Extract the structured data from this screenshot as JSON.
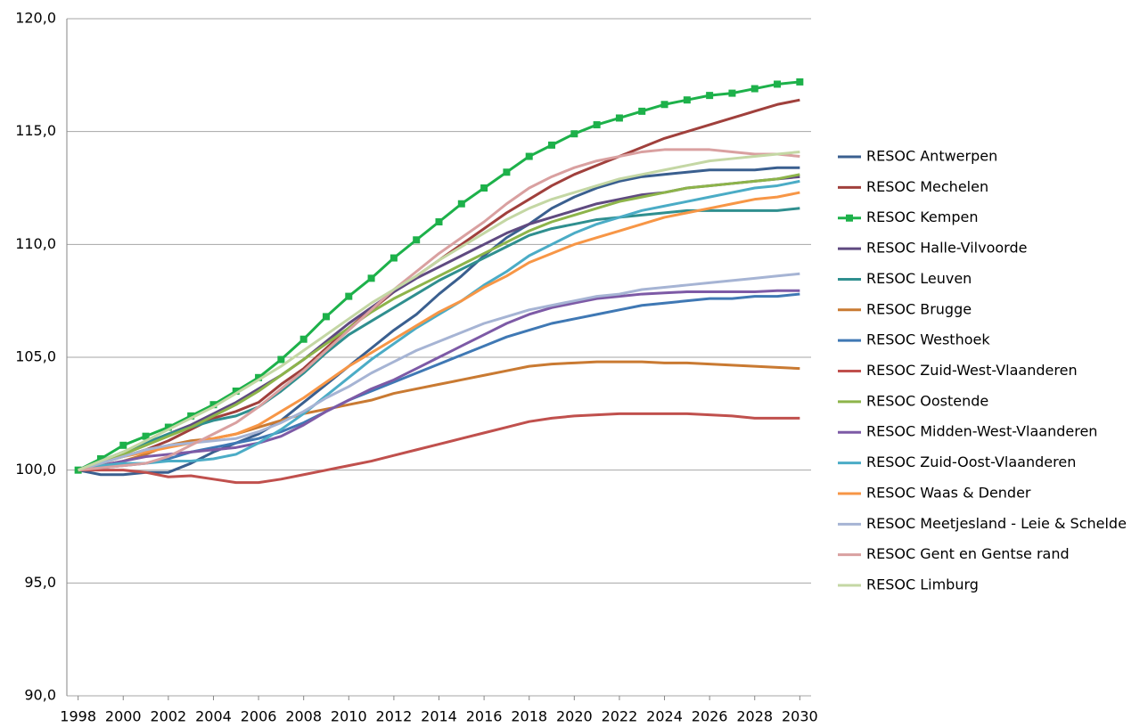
{
  "chart_data": {
    "type": "line",
    "x": [
      1998,
      1999,
      2000,
      2001,
      2002,
      2003,
      2004,
      2005,
      2006,
      2007,
      2008,
      2009,
      2010,
      2011,
      2012,
      2013,
      2014,
      2015,
      2016,
      2017,
      2018,
      2019,
      2020,
      2021,
      2022,
      2023,
      2024,
      2025,
      2026,
      2027,
      2028,
      2029,
      2030
    ],
    "xlim": [
      1997.5,
      2030.5
    ],
    "xticks": [
      1998,
      2000,
      2002,
      2004,
      2006,
      2008,
      2010,
      2012,
      2014,
      2016,
      2018,
      2020,
      2022,
      2024,
      2026,
      2028,
      2030
    ],
    "ylim": [
      90,
      120
    ],
    "yticks": [
      {
        "value": 90,
        "label": "90,0"
      },
      {
        "value": 95,
        "label": "95,0"
      },
      {
        "value": 100,
        "label": "100,0"
      },
      {
        "value": 105,
        "label": "105,0"
      },
      {
        "value": 110,
        "label": "110,0"
      },
      {
        "value": 115,
        "label": "115,0"
      },
      {
        "value": 120,
        "label": "120,0"
      }
    ],
    "grid": true,
    "legend": "right",
    "series": [
      {
        "name": "RESOC Antwerpen",
        "color": "#3a5f8f",
        "values": [
          100,
          99.8,
          99.8,
          99.9,
          99.9,
          100.3,
          100.8,
          101.2,
          101.6,
          102.2,
          103.0,
          103.8,
          104.6,
          105.4,
          106.2,
          106.9,
          107.8,
          108.6,
          109.5,
          110.3,
          110.9,
          111.6,
          112.1,
          112.5,
          112.8,
          113.0,
          113.1,
          113.2,
          113.3,
          113.3,
          113.3,
          113.4,
          113.4
        ]
      },
      {
        "name": "RESOC Mechelen",
        "color": "#a0403c",
        "values": [
          100,
          100.3,
          100.6,
          100.9,
          101.3,
          101.8,
          102.3,
          102.6,
          103.0,
          103.8,
          104.5,
          105.4,
          106.3,
          107.1,
          107.9,
          108.6,
          109.3,
          110.0,
          110.7,
          111.4,
          112.0,
          112.6,
          113.1,
          113.5,
          113.9,
          114.3,
          114.7,
          115.0,
          115.3,
          115.6,
          115.9,
          116.2,
          116.4
        ]
      },
      {
        "name": "RESOC Kempen",
        "color": "#1db14a",
        "marker": "square",
        "values": [
          100,
          100.5,
          101.1,
          101.5,
          101.9,
          102.4,
          102.9,
          103.5,
          104.1,
          104.9,
          105.8,
          106.8,
          107.7,
          108.5,
          109.4,
          110.2,
          111.0,
          111.8,
          112.5,
          113.2,
          113.9,
          114.4,
          114.9,
          115.3,
          115.6,
          115.9,
          116.2,
          116.4,
          116.6,
          116.7,
          116.9,
          117.1,
          117.2
        ]
      },
      {
        "name": "RESOC Halle-Vilvoorde",
        "color": "#5f4a80",
        "values": [
          100,
          100.4,
          100.8,
          101.2,
          101.6,
          102.0,
          102.5,
          103.0,
          103.6,
          104.2,
          104.9,
          105.7,
          106.5,
          107.2,
          107.9,
          108.5,
          109.0,
          109.5,
          110.0,
          110.5,
          110.9,
          111.2,
          111.5,
          111.8,
          112.0,
          112.2,
          112.3,
          112.5,
          112.6,
          112.7,
          112.8,
          112.9,
          113.0
        ]
      },
      {
        "name": "RESOC Leuven",
        "color": "#2f8f8f",
        "values": [
          100,
          100.4,
          100.8,
          101.2,
          101.6,
          101.9,
          102.2,
          102.4,
          102.8,
          103.5,
          104.3,
          105.2,
          106.0,
          106.6,
          107.2,
          107.8,
          108.4,
          108.9,
          109.4,
          109.9,
          110.4,
          110.7,
          110.9,
          111.1,
          111.2,
          111.3,
          111.4,
          111.5,
          111.5,
          111.5,
          111.5,
          111.5,
          111.6
        ]
      },
      {
        "name": "RESOC Brugge",
        "color": "#c97a32",
        "values": [
          100,
          100.2,
          100.4,
          100.7,
          101.1,
          101.3,
          101.4,
          101.6,
          101.9,
          102.2,
          102.5,
          102.7,
          102.9,
          103.1,
          103.4,
          103.6,
          103.8,
          104.0,
          104.2,
          104.4,
          104.6,
          104.7,
          104.75,
          104.8,
          104.8,
          104.8,
          104.75,
          104.75,
          104.7,
          104.65,
          104.6,
          104.55,
          104.5
        ]
      },
      {
        "name": "RESOC Westhoek",
        "color": "#3f78b4",
        "values": [
          100,
          100.1,
          100.2,
          100.3,
          100.5,
          100.8,
          101.0,
          101.2,
          101.4,
          101.7,
          102.1,
          102.6,
          103.1,
          103.5,
          103.9,
          104.3,
          104.7,
          105.1,
          105.5,
          105.9,
          106.2,
          106.5,
          106.7,
          106.9,
          107.1,
          107.3,
          107.4,
          107.5,
          107.6,
          107.6,
          107.7,
          107.7,
          107.8
        ]
      },
      {
        "name": "RESOC Zuid-West-Vlaanderen",
        "color": "#c0504d",
        "values": [
          100,
          100,
          100,
          99.9,
          99.7,
          99.75,
          99.6,
          99.45,
          99.45,
          99.6,
          99.8,
          100.0,
          100.2,
          100.4,
          100.65,
          100.9,
          101.15,
          101.4,
          101.65,
          101.9,
          102.15,
          102.3,
          102.4,
          102.45,
          102.5,
          102.5,
          102.5,
          102.5,
          102.45,
          102.4,
          102.3,
          102.3,
          102.3
        ]
      },
      {
        "name": "RESOC Oostende",
        "color": "#8db44a",
        "values": [
          100,
          100.3,
          100.7,
          101.1,
          101.5,
          101.9,
          102.4,
          102.9,
          103.5,
          104.2,
          104.9,
          105.6,
          106.3,
          107.0,
          107.6,
          108.1,
          108.6,
          109.1,
          109.6,
          110.1,
          110.6,
          111.0,
          111.3,
          111.6,
          111.9,
          112.1,
          112.3,
          112.5,
          112.6,
          112.7,
          112.8,
          112.9,
          113.1
        ]
      },
      {
        "name": "RESOC Midden-West-Vlaanderen",
        "color": "#7d5aa6",
        "values": [
          100,
          100.2,
          100.4,
          100.6,
          100.7,
          100.8,
          100.9,
          101.0,
          101.2,
          101.5,
          102.0,
          102.6,
          103.1,
          103.6,
          104.0,
          104.5,
          105.0,
          105.5,
          106.0,
          106.5,
          106.9,
          107.2,
          107.4,
          107.6,
          107.7,
          107.8,
          107.85,
          107.9,
          107.9,
          107.9,
          107.9,
          107.95,
          107.95
        ]
      },
      {
        "name": "RESOC Zuid-Oost-Vlaanderen",
        "color": "#4bacc6",
        "values": [
          100,
          100.2,
          100.3,
          100.3,
          100.4,
          100.4,
          100.5,
          100.7,
          101.2,
          101.8,
          102.5,
          103.3,
          104.1,
          104.9,
          105.6,
          106.3,
          106.9,
          107.5,
          108.2,
          108.8,
          109.5,
          110.0,
          110.5,
          110.9,
          111.2,
          111.5,
          111.7,
          111.9,
          112.1,
          112.3,
          112.5,
          112.6,
          112.8
        ]
      },
      {
        "name": "RESOC Waas & Dender",
        "color": "#f79646",
        "values": [
          100,
          100.3,
          100.6,
          100.8,
          101.0,
          101.2,
          101.4,
          101.6,
          102.0,
          102.6,
          103.2,
          103.9,
          104.6,
          105.2,
          105.8,
          106.4,
          107.0,
          107.5,
          108.1,
          108.6,
          109.2,
          109.6,
          110.0,
          110.3,
          110.6,
          110.9,
          111.2,
          111.4,
          111.6,
          111.8,
          112.0,
          112.1,
          112.3
        ]
      },
      {
        "name": "RESOC Meetjesland - Leie & Schelde",
        "color": "#a6b4d4",
        "values": [
          100,
          100.3,
          100.6,
          100.9,
          101.1,
          101.2,
          101.3,
          101.4,
          101.7,
          102.1,
          102.6,
          103.2,
          103.7,
          104.3,
          104.8,
          105.3,
          105.7,
          106.1,
          106.5,
          106.8,
          107.1,
          107.3,
          107.5,
          107.7,
          107.8,
          108.0,
          108.1,
          108.2,
          108.3,
          108.4,
          108.5,
          108.6,
          108.7
        ]
      },
      {
        "name": "RESOC Gent en Gentse rand",
        "color": "#d9a0a0",
        "values": [
          100,
          100.1,
          100.2,
          100.3,
          100.6,
          101.1,
          101.6,
          102.1,
          102.8,
          103.6,
          104.4,
          105.3,
          106.2,
          107.1,
          108.0,
          108.8,
          109.6,
          110.3,
          111.0,
          111.8,
          112.5,
          113.0,
          113.4,
          113.7,
          113.9,
          114.1,
          114.2,
          114.2,
          114.2,
          114.1,
          114.0,
          114.0,
          113.9
        ]
      },
      {
        "name": "RESOC Limburg",
        "color": "#c4d7a4",
        "values": [
          100,
          100.4,
          100.8,
          101.3,
          101.8,
          102.3,
          102.8,
          103.4,
          104.0,
          104.6,
          105.3,
          106.0,
          106.7,
          107.4,
          108.0,
          108.6,
          109.3,
          109.9,
          110.5,
          111.1,
          111.6,
          112.0,
          112.3,
          112.6,
          112.9,
          113.1,
          113.3,
          113.5,
          113.7,
          113.8,
          113.9,
          114.0,
          114.1
        ]
      }
    ]
  }
}
